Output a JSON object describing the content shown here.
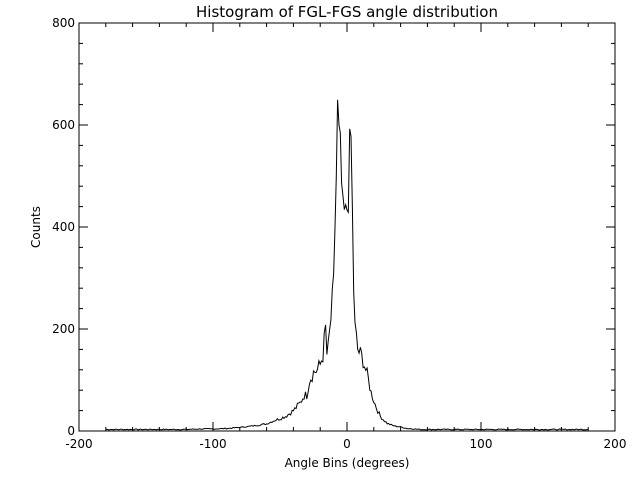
{
  "chart_data": {
    "type": "line",
    "title": "Histogram of FGL-FGS angle distribution",
    "xlabel": "Angle Bins (degrees)",
    "ylabel": "Counts",
    "xlim": [
      -200,
      200
    ],
    "ylim": [
      0,
      800
    ],
    "xticks": [
      -200,
      -100,
      0,
      100,
      200
    ],
    "yticks": [
      0,
      200,
      400,
      600,
      800
    ],
    "grid": false,
    "series": [
      {
        "name": "",
        "x": [
          -180,
          -170,
          -160,
          -150,
          -140,
          -130,
          -120,
          -110,
          -100,
          -90,
          -80,
          -70,
          -60,
          -55,
          -50,
          -45,
          -40,
          -35,
          -32,
          -30,
          -28,
          -25,
          -22,
          -20,
          -18,
          -16,
          -15,
          -14,
          -12,
          -10,
          -9,
          -8,
          -7,
          -6,
          -5,
          -4,
          -3,
          -2,
          -1,
          0,
          1,
          2,
          3,
          4,
          5,
          6,
          7,
          8,
          10,
          12,
          14,
          16,
          18,
          20,
          22,
          25,
          28,
          30,
          35,
          40,
          45,
          50,
          55,
          60,
          70,
          80,
          90,
          100,
          110,
          120,
          130,
          140,
          150,
          160,
          170,
          180
        ],
        "values": [
          3,
          3,
          3,
          3,
          3,
          3,
          3,
          4,
          4,
          5,
          7,
          10,
          14,
          20,
          24,
          30,
          40,
          55,
          70,
          70,
          100,
          115,
          120,
          130,
          150,
          200,
          150,
          160,
          220,
          280,
          400,
          500,
          618,
          560,
          530,
          480,
          410,
          420,
          410,
          440,
          480,
          530,
          570,
          420,
          280,
          200,
          180,
          160,
          150,
          140,
          120,
          100,
          75,
          60,
          45,
          28,
          20,
          15,
          10,
          8,
          5,
          4,
          3,
          3,
          3,
          3,
          3,
          3,
          3,
          3,
          3,
          3,
          3,
          3,
          3,
          3
        ]
      }
    ]
  }
}
